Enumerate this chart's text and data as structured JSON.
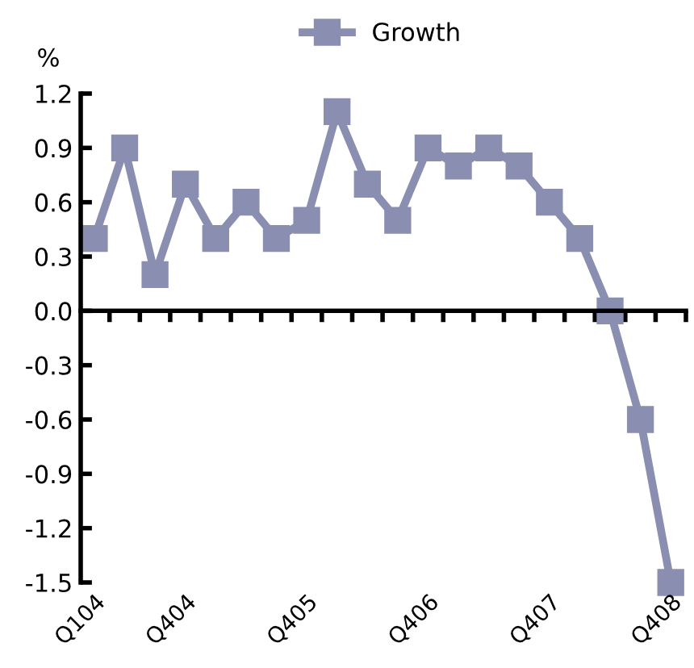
{
  "chart_data": {
    "type": "line",
    "ylabel": "%",
    "categories": [
      "Q104",
      null,
      null,
      "Q404",
      null,
      null,
      null,
      "Q405",
      null,
      null,
      null,
      "Q406",
      null,
      null,
      null,
      "Q407",
      null,
      null,
      null,
      "Q408"
    ],
    "series": [
      {
        "name": "Growth",
        "color": "#8a8eb0",
        "values": [
          0.4,
          0.9,
          0.2,
          0.7,
          0.4,
          0.6,
          0.4,
          0.5,
          1.1,
          0.7,
          0.5,
          0.9,
          0.8,
          0.9,
          0.8,
          0.6,
          0.4,
          0.0,
          -0.6,
          -1.5
        ]
      }
    ],
    "ylim": [
      -1.5,
      1.2
    ],
    "yticks": [
      {
        "value": -1.5,
        "label": "-1.5"
      },
      {
        "value": -1.2,
        "label": "-1.2"
      },
      {
        "value": -0.9,
        "label": "-0.9"
      },
      {
        "value": -0.6,
        "label": "-0.6"
      },
      {
        "value": -0.3,
        "label": "-0.3"
      },
      {
        "value": 0.0,
        "label": "0.0"
      },
      {
        "value": 0.3,
        "label": "0.3"
      },
      {
        "value": 0.6,
        "label": "0.6"
      },
      {
        "value": 0.9,
        "label": "0.9"
      },
      {
        "value": 1.2,
        "label": "1.2"
      }
    ],
    "marker": "square",
    "line_style": "solid",
    "legend": "top"
  }
}
